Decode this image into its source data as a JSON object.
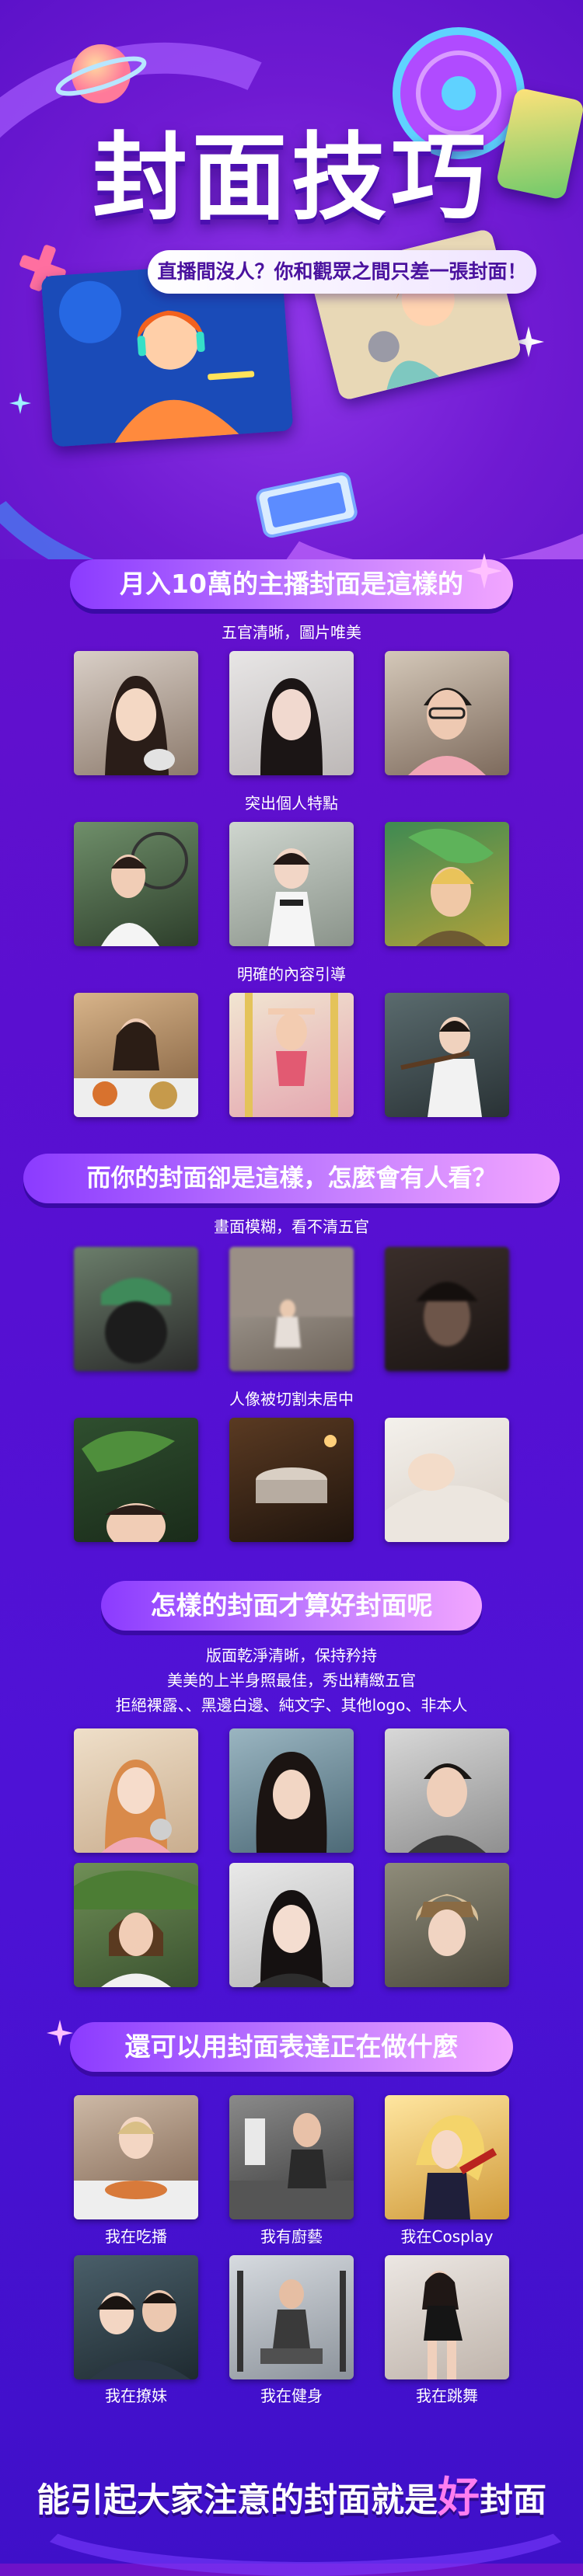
{
  "hero": {
    "title": "封面技巧",
    "tagline": "直播間沒人？你和觀眾之間只差一張封面！"
  },
  "section1": {
    "header": "月入10萬的主播封面是這樣的",
    "groups": [
      {
        "caption": "五官清晰，圖片唯美"
      },
      {
        "caption": "突出個人特點"
      },
      {
        "caption": "明確的內容引導"
      }
    ]
  },
  "section2": {
    "header": "而你的封面卻是這樣，怎麼會有人看？",
    "groups": [
      {
        "caption": "畫面模糊，看不清五官"
      },
      {
        "caption": "人像被切割未居中"
      }
    ]
  },
  "section3": {
    "header": "怎樣的封面才算好封面呢",
    "rules": [
      "版面乾淨清晰，保持矜持",
      "美美的上半身照最佳，秀出精緻五官",
      "拒絕裸露、、黑邊白邊、純文字、其他logo、非本人"
    ]
  },
  "section4": {
    "header": "還可以用封面表達正在做什麼",
    "items": [
      {
        "caption": "我在吃播"
      },
      {
        "caption": "我有廚藝"
      },
      {
        "caption": "我在Cosplay"
      },
      {
        "caption": "我在撩妹"
      },
      {
        "caption": "我在健身"
      },
      {
        "caption": "我在跳舞"
      }
    ]
  },
  "footer": {
    "text_a": "能引起大家注意的封面就是",
    "text_big": "好",
    "text_b": "封面"
  },
  "colors": {
    "background": "#5a0fd0",
    "header_gradient_start": "#8b3bff",
    "header_gradient_end": "#f2a6ff",
    "accent_pink": "#ff7df0"
  }
}
